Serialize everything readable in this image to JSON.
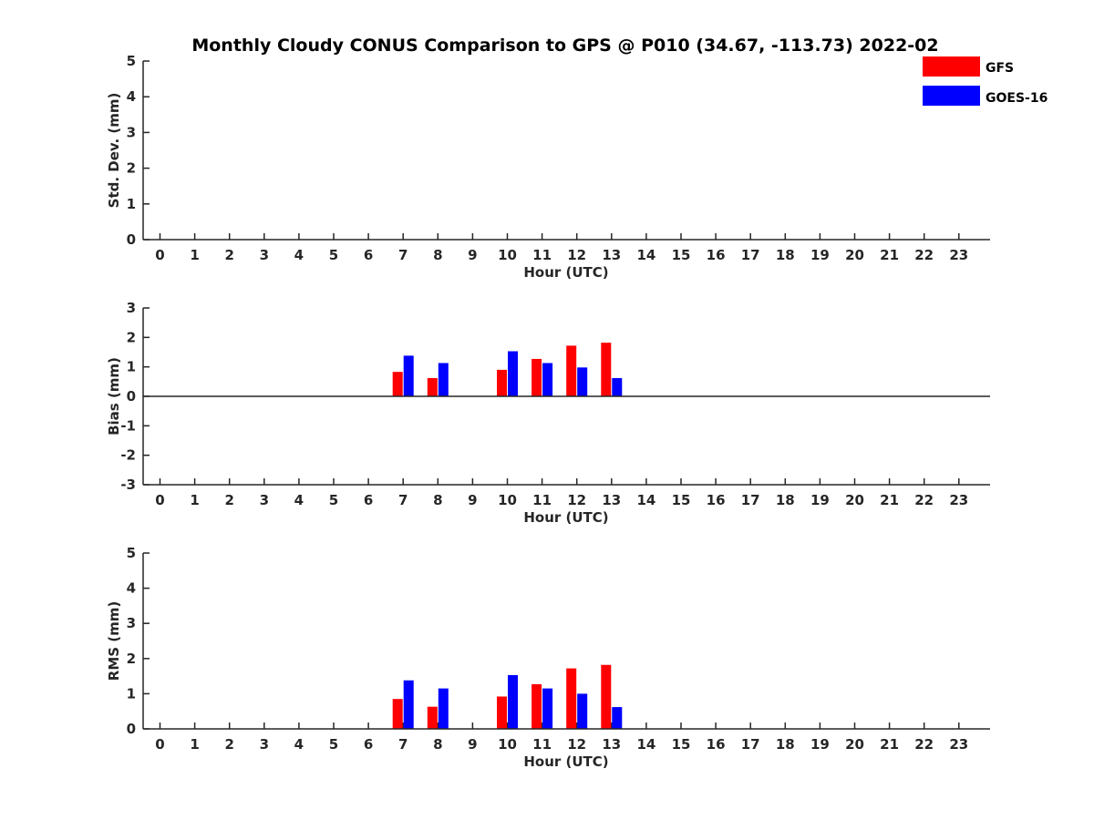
{
  "title": "Monthly Cloudy CONUS Comparison to GPS @ P010 (34.67, -113.73) 2022-02",
  "legend": [
    {
      "name": "GFS",
      "color": "#ff0000"
    },
    {
      "name": "GOES-16",
      "color": "#0000ff"
    }
  ],
  "chart_data": [
    {
      "type": "bar",
      "xlabel": "Hour (UTC)",
      "ylabel": "Std. Dev. (mm)",
      "ylim": [
        0,
        5
      ],
      "yticks": [
        "0",
        "1",
        "2",
        "3",
        "4",
        "5"
      ],
      "categories": [
        "0",
        "1",
        "2",
        "3",
        "4",
        "5",
        "6",
        "7",
        "8",
        "9",
        "10",
        "11",
        "12",
        "13",
        "14",
        "15",
        "16",
        "17",
        "18",
        "19",
        "20",
        "21",
        "22",
        "23"
      ],
      "series": [
        {
          "name": "GFS",
          "values": [
            null,
            null,
            null,
            null,
            null,
            null,
            null,
            null,
            null,
            null,
            null,
            null,
            null,
            null,
            null,
            null,
            null,
            null,
            null,
            null,
            null,
            null,
            null,
            null
          ]
        },
        {
          "name": "GOES-16",
          "values": [
            null,
            null,
            null,
            null,
            null,
            null,
            null,
            null,
            null,
            null,
            null,
            null,
            null,
            null,
            null,
            null,
            null,
            null,
            null,
            null,
            null,
            null,
            null,
            null
          ]
        }
      ]
    },
    {
      "type": "bar",
      "xlabel": "Hour (UTC)",
      "ylabel": "Bias (mm)",
      "ylim": [
        -3,
        3
      ],
      "yticks": [
        "-3",
        "-2",
        "-1",
        "0",
        "1",
        "2",
        "3"
      ],
      "categories": [
        "0",
        "1",
        "2",
        "3",
        "4",
        "5",
        "6",
        "7",
        "8",
        "9",
        "10",
        "11",
        "12",
        "13",
        "14",
        "15",
        "16",
        "17",
        "18",
        "19",
        "20",
        "21",
        "22",
        "23"
      ],
      "series": [
        {
          "name": "GFS",
          "values": [
            null,
            null,
            null,
            null,
            null,
            null,
            null,
            0.83,
            0.62,
            null,
            0.9,
            1.27,
            1.72,
            1.82,
            null,
            null,
            null,
            null,
            null,
            null,
            null,
            null,
            null,
            null
          ]
        },
        {
          "name": "GOES-16",
          "values": [
            null,
            null,
            null,
            null,
            null,
            null,
            null,
            1.38,
            1.13,
            null,
            1.53,
            1.13,
            0.98,
            0.62,
            null,
            null,
            null,
            null,
            null,
            null,
            null,
            null,
            null,
            null
          ]
        }
      ]
    },
    {
      "type": "bar",
      "xlabel": "Hour (UTC)",
      "ylabel": "RMS (mm)",
      "ylim": [
        0,
        5
      ],
      "yticks": [
        "0",
        "1",
        "2",
        "3",
        "4",
        "5"
      ],
      "categories": [
        "0",
        "1",
        "2",
        "3",
        "4",
        "5",
        "6",
        "7",
        "8",
        "9",
        "10",
        "11",
        "12",
        "13",
        "14",
        "15",
        "16",
        "17",
        "18",
        "19",
        "20",
        "21",
        "22",
        "23"
      ],
      "series": [
        {
          "name": "GFS",
          "values": [
            null,
            null,
            null,
            null,
            null,
            null,
            null,
            0.85,
            0.63,
            null,
            0.92,
            1.27,
            1.72,
            1.82,
            null,
            null,
            null,
            null,
            null,
            null,
            null,
            null,
            null,
            null
          ]
        },
        {
          "name": "GOES-16",
          "values": [
            null,
            null,
            null,
            null,
            null,
            null,
            null,
            1.38,
            1.15,
            null,
            1.53,
            1.15,
            1.0,
            0.62,
            null,
            null,
            null,
            null,
            null,
            null,
            null,
            null,
            null,
            null
          ]
        }
      ]
    }
  ]
}
